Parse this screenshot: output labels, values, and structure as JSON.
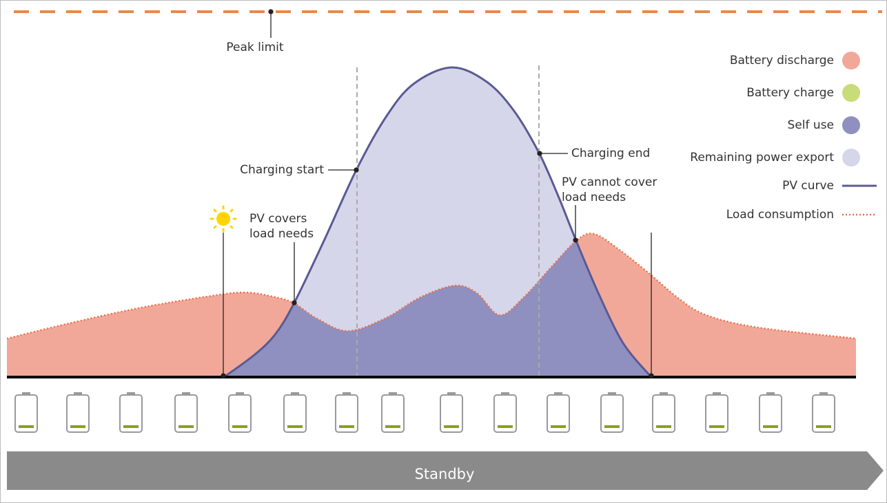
{
  "peak_limit": "Peak limit",
  "annotations": {
    "charging_start": "Charging start",
    "charging_end": "Charging end",
    "pv_covers": [
      "PV covers",
      "load needs"
    ],
    "pv_cannot_cover": [
      "PV cannot cover",
      "load needs"
    ]
  },
  "legend": [
    {
      "name": "Battery discharge",
      "color": "#f2a898",
      "marker": "circle"
    },
    {
      "name": "Battery charge",
      "color": "#c8dc78",
      "marker": "circle"
    },
    {
      "name": "Self use",
      "color": "#8f8fc0",
      "marker": "circle"
    },
    {
      "name": "Remaining power export",
      "color": "#d6d6ea",
      "marker": "circle"
    },
    {
      "name": "PV curve",
      "color": "#5a5a94",
      "marker": "line"
    },
    {
      "name": "Load consumption",
      "color": "#e8704c",
      "marker": "dotted-line"
    }
  ],
  "mode": "Standby"
}
